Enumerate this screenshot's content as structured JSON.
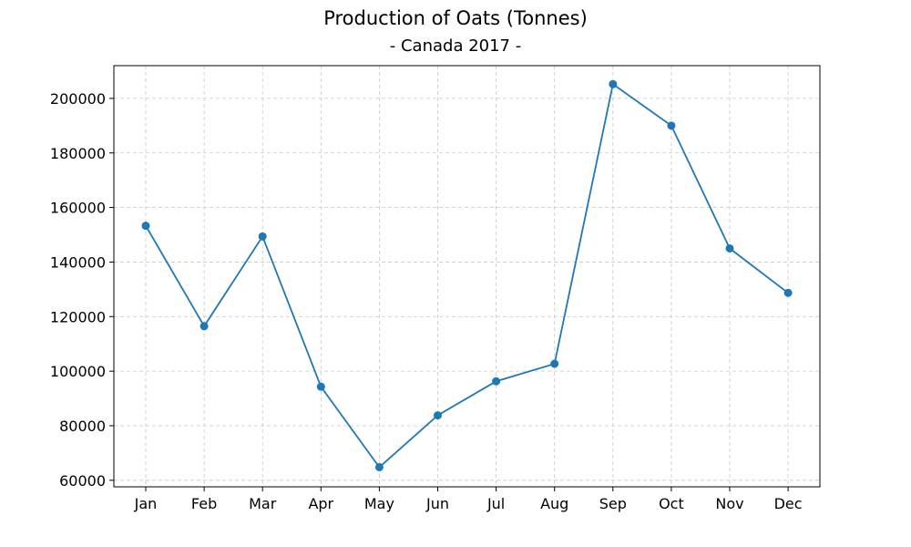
{
  "chart_data": {
    "type": "line",
    "title": "Production of Oats (Tonnes)",
    "subtitle": "- Canada 2017 -",
    "xlabel": "",
    "ylabel": "",
    "categories": [
      "Jan",
      "Feb",
      "Mar",
      "Apr",
      "May",
      "Jun",
      "Jul",
      "Aug",
      "Sep",
      "Oct",
      "Nov",
      "Dec"
    ],
    "series": [
      {
        "values": [
          153300,
          116500,
          149400,
          94300,
          64800,
          83800,
          96300,
          102700,
          205200,
          190000,
          145000,
          128700
        ],
        "color": "#1f77b4"
      }
    ],
    "yticks": [
      60000,
      80000,
      100000,
      120000,
      140000,
      160000,
      180000,
      200000
    ],
    "ylim": [
      57600,
      212000
    ],
    "grid": true,
    "legend": "none"
  }
}
